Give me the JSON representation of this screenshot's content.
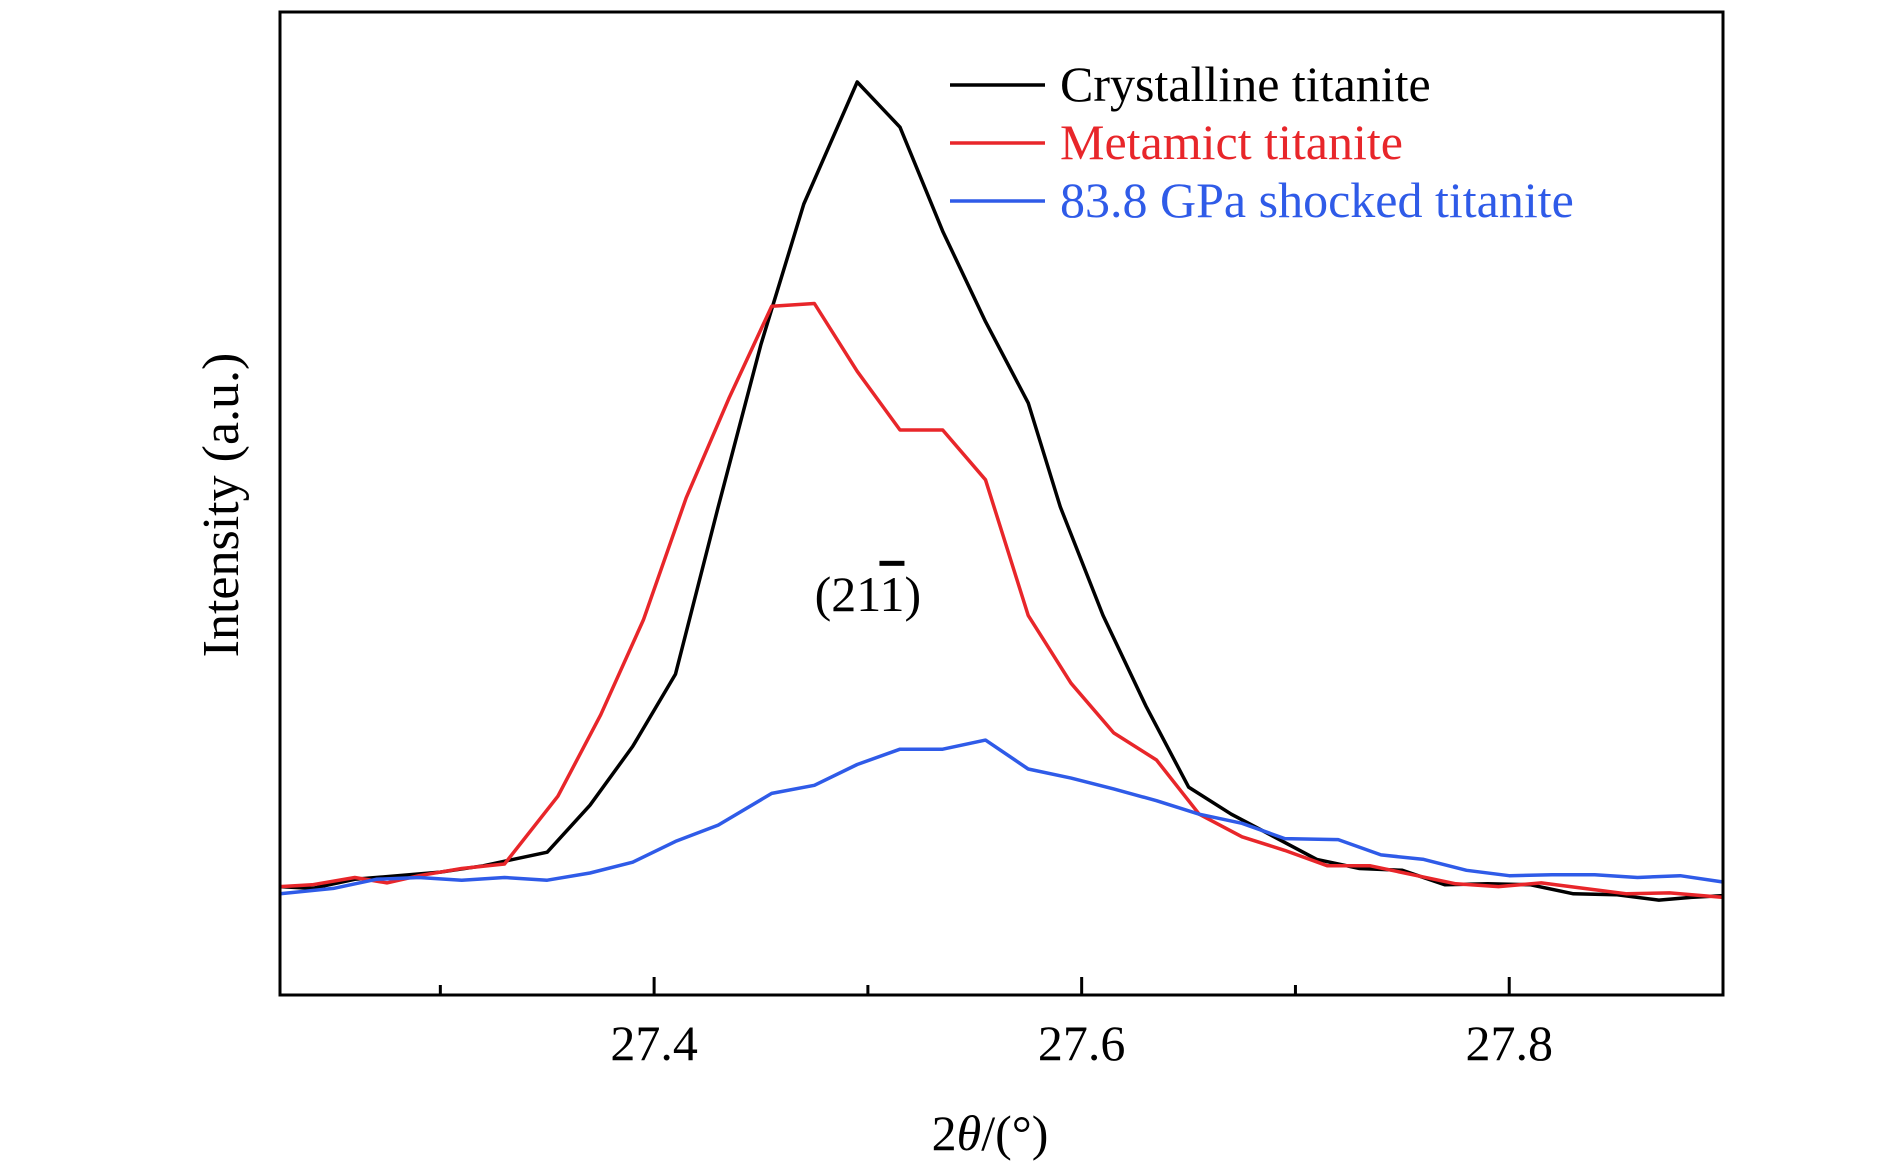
{
  "chart_data": {
    "type": "line",
    "title": "",
    "xlabel_prefix": "2",
    "xlabel_symbol": "θ",
    "xlabel_suffix": "/(°)",
    "ylabel": "Intensity (a.u.)",
    "xlim": [
      27.225,
      27.9
    ],
    "ylim": [
      0,
      1
    ],
    "x_ticks": [
      27.4,
      27.6,
      27.8
    ],
    "x_tick_labels": [
      "27.4",
      "27.6",
      "27.8"
    ],
    "x_minor_ticks": [
      27.3,
      27.5,
      27.7
    ],
    "grid": false,
    "legend_position": "top-right",
    "annotation": {
      "prefix": "(21",
      "overlined": "1",
      "suffix": ")",
      "x": 27.5,
      "y": 0.415
    },
    "series": [
      {
        "name": "Crystalline titanite",
        "color": "#000000",
        "x": [
          27.225,
          27.24,
          27.26,
          27.28,
          27.3,
          27.32,
          27.35,
          27.37,
          27.39,
          27.41,
          27.43,
          27.45,
          27.47,
          27.495,
          27.515,
          27.535,
          27.555,
          27.575,
          27.59,
          27.61,
          27.63,
          27.65,
          27.67,
          27.69,
          27.71,
          27.73,
          27.75,
          27.77,
          27.79,
          27.81,
          27.83,
          27.85,
          27.87,
          27.885,
          27.9
        ],
        "y": [
          0.11,
          0.108,
          0.118,
          0.122,
          0.126,
          0.133,
          0.148,
          0.2,
          0.265,
          0.345,
          0.53,
          0.71,
          0.865,
          1.0,
          0.95,
          0.835,
          0.735,
          0.645,
          0.53,
          0.41,
          0.31,
          0.22,
          0.19,
          0.165,
          0.14,
          0.13,
          0.128,
          0.112,
          0.113,
          0.112,
          0.102,
          0.101,
          0.095,
          0.098,
          0.1
        ]
      },
      {
        "name": "Metamict titanite",
        "color": "#e8262a",
        "x": [
          27.225,
          27.24,
          27.26,
          27.275,
          27.29,
          27.31,
          27.33,
          27.355,
          27.375,
          27.395,
          27.415,
          27.435,
          27.455,
          27.475,
          27.495,
          27.515,
          27.535,
          27.555,
          27.575,
          27.595,
          27.615,
          27.635,
          27.655,
          27.675,
          27.695,
          27.715,
          27.735,
          27.755,
          27.775,
          27.795,
          27.815,
          27.835,
          27.855,
          27.875,
          27.9
        ],
        "y": [
          0.11,
          0.112,
          0.12,
          0.114,
          0.122,
          0.13,
          0.135,
          0.21,
          0.3,
          0.405,
          0.54,
          0.65,
          0.752,
          0.755,
          0.68,
          0.615,
          0.615,
          0.56,
          0.41,
          0.335,
          0.28,
          0.25,
          0.19,
          0.165,
          0.15,
          0.133,
          0.133,
          0.123,
          0.113,
          0.11,
          0.114,
          0.108,
          0.102,
          0.103,
          0.098
        ]
      },
      {
        "name": "83.8 GPa shocked titanite",
        "color": "#2f5be8",
        "x": [
          27.225,
          27.25,
          27.27,
          27.29,
          27.31,
          27.33,
          27.35,
          27.37,
          27.39,
          27.41,
          27.43,
          27.455,
          27.475,
          27.495,
          27.515,
          27.535,
          27.555,
          27.575,
          27.595,
          27.615,
          27.635,
          27.655,
          27.675,
          27.695,
          27.72,
          27.74,
          27.76,
          27.78,
          27.8,
          27.82,
          27.84,
          27.86,
          27.88,
          27.9
        ],
        "y": [
          0.102,
          0.108,
          0.118,
          0.12,
          0.117,
          0.12,
          0.117,
          0.125,
          0.137,
          0.16,
          0.178,
          0.213,
          0.222,
          0.245,
          0.262,
          0.262,
          0.272,
          0.24,
          0.23,
          0.218,
          0.205,
          0.19,
          0.18,
          0.163,
          0.162,
          0.145,
          0.14,
          0.128,
          0.122,
          0.123,
          0.123,
          0.12,
          0.122,
          0.115
        ]
      }
    ]
  }
}
